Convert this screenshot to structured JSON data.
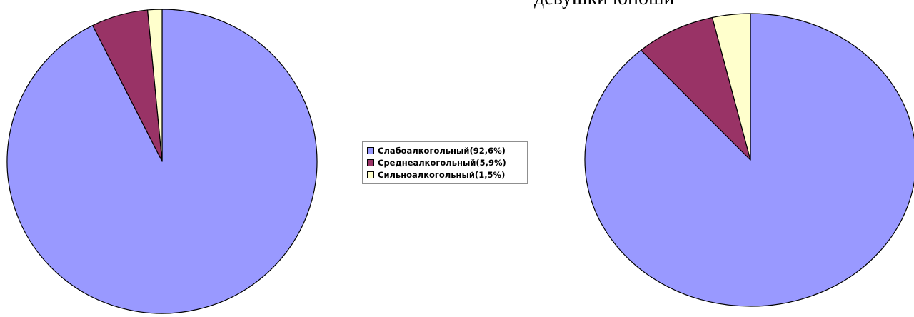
{
  "page": {
    "title": "девушки юноши"
  },
  "legend": {
    "placement": "center",
    "items": [
      {
        "label": "Слабоалкогольный(92,6%)",
        "color": "#9999ff"
      },
      {
        "label": "Среднеалкогольный(5,9%)",
        "color": "#993366"
      },
      {
        "label": "Сильноалкогольный(1,5%)",
        "color": "#ffffcc"
      }
    ]
  },
  "chart_data": [
    {
      "type": "pie",
      "title": "",
      "categories": [
        "Слабоалкогольный",
        "Среднеалкогольный",
        "Сильноалкогольный"
      ],
      "values": [
        92.6,
        5.9,
        1.5
      ],
      "colors": [
        "#9999ff",
        "#993366",
        "#ffffcc"
      ]
    },
    {
      "type": "pie",
      "title": "",
      "categories": [
        "Слабоалкогольный",
        "Среднеалкогольный",
        "Сильноалкогольный"
      ],
      "values": [
        88.5,
        7.8,
        3.7
      ],
      "colors": [
        "#9999ff",
        "#993366",
        "#ffffcc"
      ]
    }
  ]
}
